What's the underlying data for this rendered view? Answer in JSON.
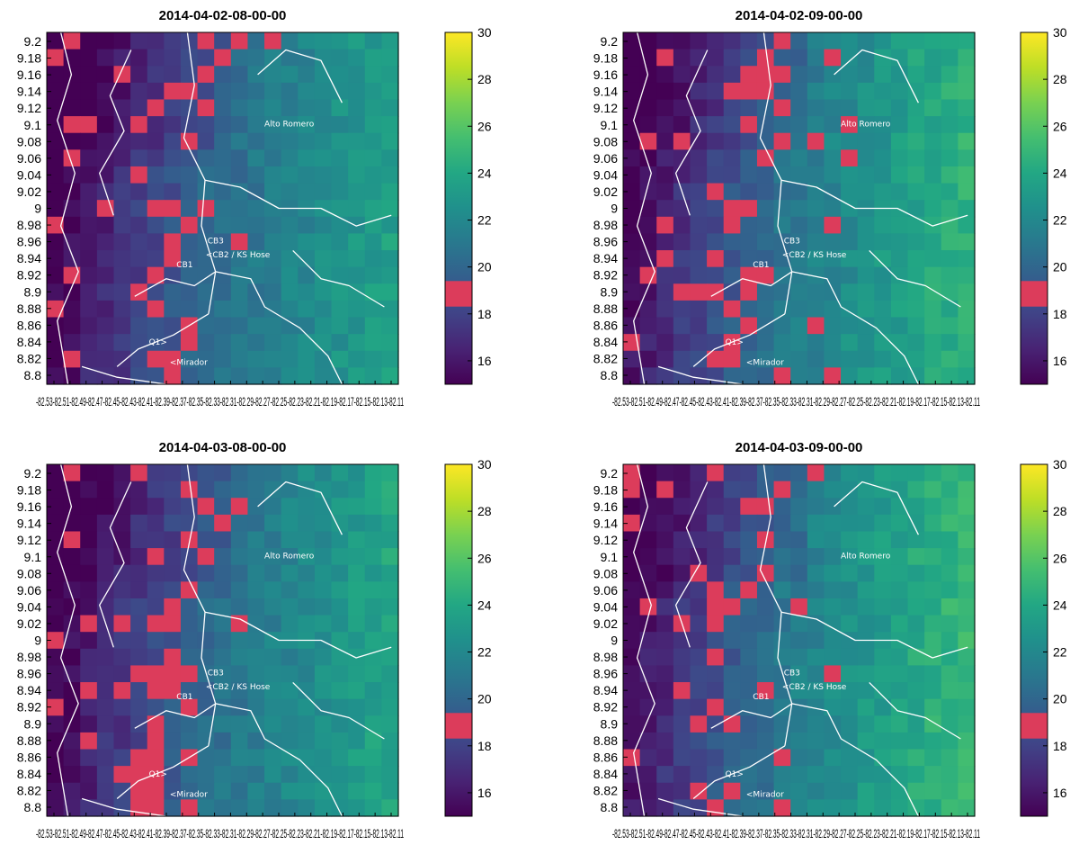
{
  "chart_data": [
    {
      "type": "heatmap",
      "title": "2014-04-02-08-00-00",
      "seed": 11,
      "shift": 0.0,
      "hot": 0.1
    },
    {
      "type": "heatmap",
      "title": "2014-04-02-09-00-00",
      "seed": 23,
      "shift": 1.2,
      "hot": 0.1
    },
    {
      "type": "heatmap",
      "title": "2014-04-03-08-00-00",
      "seed": 37,
      "shift": 0.3,
      "hot": 0.11
    },
    {
      "type": "heatmap",
      "title": "2014-04-03-09-00-00",
      "seed": 53,
      "shift": 1.6,
      "hot": 0.09
    }
  ],
  "shared": {
    "y_ticks": [
      "9.2",
      "9.18",
      "9.16",
      "9.14",
      "9.12",
      "9.1",
      "9.08",
      "9.06",
      "9.04",
      "9.02",
      "9",
      "8.98",
      "8.96",
      "8.94",
      "8.92",
      "8.9",
      "8.88",
      "8.86",
      "8.84",
      "8.82",
      "8.8"
    ],
    "x_tick_text": "-82.53-82.51-82.49-82.47-82.45-82.43-82.41-82.39-82.37-82.35-82.33-82.31-82.29-82.27-82.25-82.23-82.21-82.19-82.17-82.15-82.13-82.11",
    "x_range": [
      -82.53,
      -82.11
    ],
    "y_range": [
      8.8,
      9.2
    ],
    "colorbar": {
      "ticks": [
        "30",
        "28",
        "26",
        "24",
        "22",
        "20",
        "18",
        "16"
      ],
      "range": [
        15,
        30
      ],
      "highlight_band": [
        19,
        19.4
      ],
      "highlight_color": "#dc3c5b",
      "colormap": "viridis"
    },
    "places": [
      {
        "label": "Alto Romero",
        "lon": -82.27,
        "lat": 9.093
      },
      {
        "label": "CB3",
        "lon": -82.338,
        "lat": 8.96
      },
      {
        "label": "<CB2 / KS Hose",
        "lon": -82.34,
        "lat": 8.944
      },
      {
        "label": "CB1",
        "lon": -82.375,
        "lat": 8.933
      },
      {
        "label": "Q1>",
        "lon": -82.408,
        "lat": 8.845
      },
      {
        "label": "<Mirador",
        "lon": -82.383,
        "lat": 8.822
      }
    ]
  }
}
